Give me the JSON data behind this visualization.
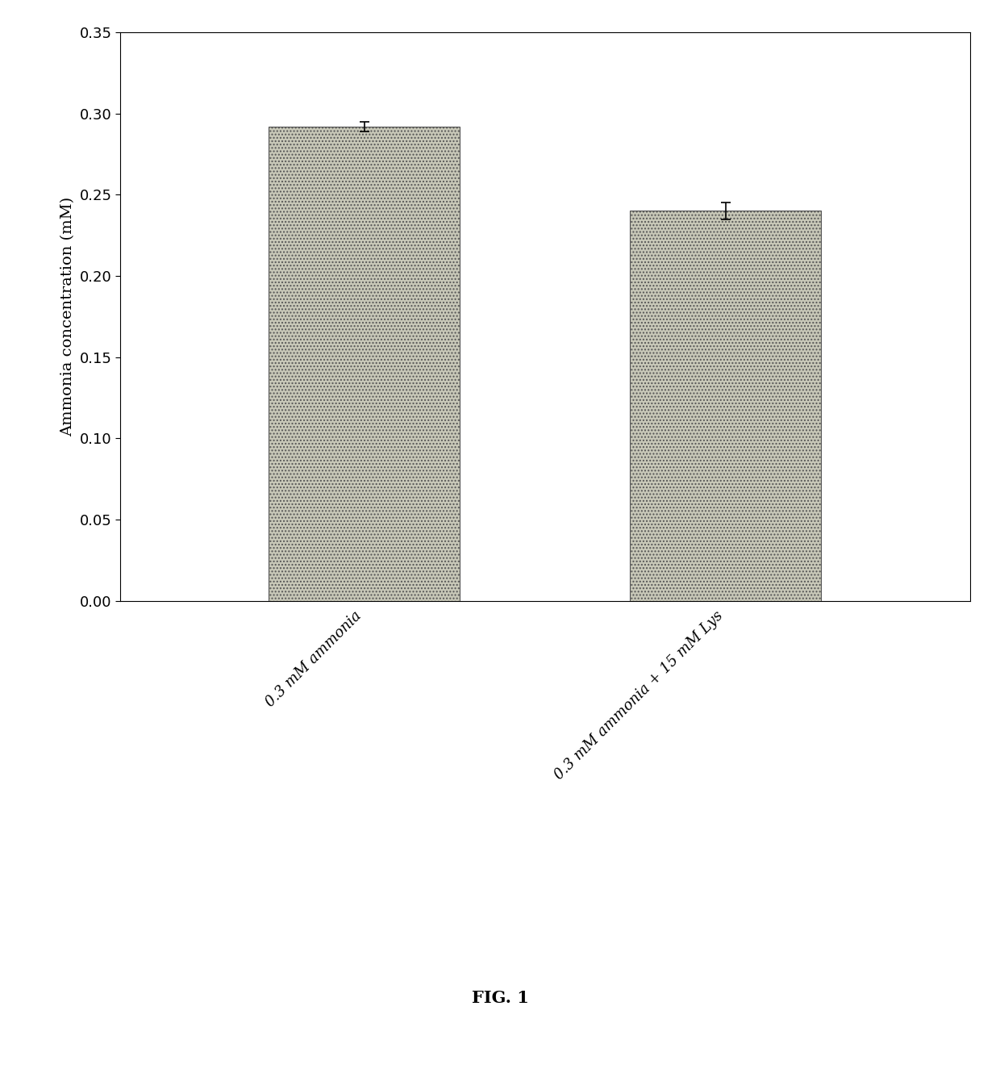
{
  "categories": [
    "0.3 mM ammonia",
    "0.3 mM ammonia + 15 mM Lys"
  ],
  "values": [
    0.292,
    0.24
  ],
  "errors": [
    0.003,
    0.005
  ],
  "bar_color": "#c8c8b8",
  "bar_edgecolor": "#555555",
  "ylabel": "Ammonia concentration (mM)",
  "ylim": [
    0.0,
    0.35
  ],
  "yticks": [
    0.0,
    0.05,
    0.1,
    0.15,
    0.2,
    0.25,
    0.3,
    0.35
  ],
  "caption": "FIG. 1",
  "background_color": "#ffffff",
  "bar_width": 0.18,
  "x_positions": [
    0.28,
    0.62
  ],
  "xlim": [
    0.05,
    0.85
  ],
  "tick_label_fontsize": 13,
  "ylabel_fontsize": 14,
  "caption_fontsize": 15
}
